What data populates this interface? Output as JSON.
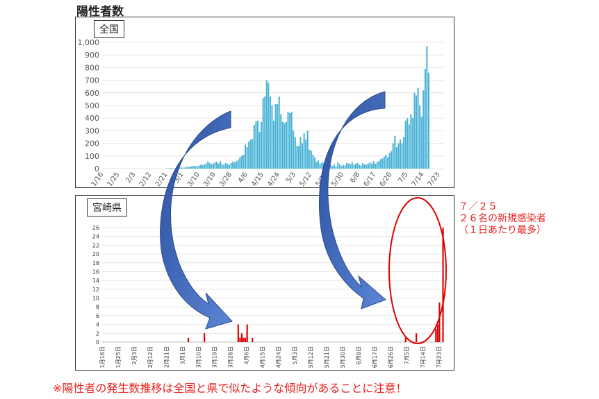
{
  "page_title": "陽性者数",
  "annotation": {
    "line1": "７／２５",
    "line2": "２６名の新規感染者",
    "line3": "（１日あたり最多）"
  },
  "footnote": "※陽性者の発生数推移は全国と県で似たような傾向があることに注意！",
  "colors": {
    "national_bar": "#4bb3d6",
    "pref_bar": "#e00000",
    "annotation": "#e8201e",
    "arrow": "#3a63b8",
    "highlight_ellipse": "#e00000"
  },
  "chart_data": [
    {
      "type": "bar",
      "panel_label": "全国",
      "x_ticks": [
        "1/16",
        "1/25",
        "2/3",
        "2/12",
        "2/21",
        "3/1",
        "3/10",
        "3/19",
        "3/28",
        "4/6",
        "4/15",
        "4/24",
        "5/3",
        "5/12",
        "5/21",
        "5/30",
        "6/8",
        "6/17",
        "6/26",
        "7/5",
        "7/14",
        "7/23"
      ],
      "y_ticks": [
        "0",
        "100",
        "200",
        "300",
        "400",
        "500",
        "600",
        "700",
        "800",
        "900",
        "1,000"
      ],
      "ylim": [
        0,
        1000
      ],
      "grid": true,
      "x_start": "1/16",
      "values": [
        0,
        0,
        0,
        0,
        0,
        0,
        0,
        0,
        0,
        0,
        0,
        0,
        0,
        0,
        0,
        0,
        0,
        0,
        0,
        0,
        0,
        0,
        0,
        0,
        0,
        0,
        0,
        0,
        0,
        0,
        0,
        0,
        0,
        0,
        0,
        0,
        3,
        2,
        5,
        4,
        2,
        5,
        6,
        8,
        10,
        8,
        8,
        12,
        14,
        16,
        18,
        22,
        20,
        15,
        25,
        30,
        28,
        33,
        40,
        55,
        45,
        35,
        42,
        50,
        55,
        40,
        60,
        35,
        30,
        45,
        38,
        30,
        45,
        55,
        50,
        60,
        70,
        90,
        100,
        110,
        190,
        170,
        215,
        230,
        235,
        345,
        375,
        380,
        290,
        370,
        560,
        570,
        700,
        680,
        570,
        500,
        380,
        510,
        510,
        570,
        430,
        370,
        360,
        370,
        450,
        440,
        450,
        300,
        250,
        180,
        180,
        250,
        200,
        280,
        230,
        300,
        150,
        140,
        110,
        90,
        55,
        65,
        40,
        50,
        45,
        40,
        25,
        35,
        30,
        20,
        35,
        15,
        50,
        35,
        20,
        30,
        25,
        45,
        40,
        35,
        50,
        30,
        40,
        45,
        30,
        25,
        45,
        35,
        30,
        40,
        50,
        40,
        60,
        40,
        50,
        60,
        75,
        80,
        95,
        110,
        90,
        125,
        140,
        200,
        260,
        170,
        200,
        230,
        200,
        250,
        380,
        400,
        350,
        430,
        400,
        600,
        580,
        640,
        500,
        410,
        620,
        790,
        970,
        760
      ]
    },
    {
      "type": "bar",
      "panel_label": "宮崎県",
      "x_ticks": [
        "1月16日",
        "1月25日",
        "2月3日",
        "2月12日",
        "2月21日",
        "3月1日",
        "3月10日",
        "3月19日",
        "3月28日",
        "4月6日",
        "4月15日",
        "4月24日",
        "5月3日",
        "5月12日",
        "5月21日",
        "5月30日",
        "6月8日",
        "6月17日",
        "6月26日",
        "7月5日",
        "7月14日",
        "7月23日"
      ],
      "y_ticks": [
        "0",
        "2",
        "4",
        "6",
        "8",
        "10",
        "12",
        "14",
        "16",
        "18",
        "20",
        "22",
        "24",
        "26"
      ],
      "ylim": [
        0,
        28
      ],
      "grid": true,
      "nonzero_days": [
        {
          "date": "3/4",
          "value": 1
        },
        {
          "date": "3/13",
          "value": 2
        },
        {
          "date": "4/1",
          "value": 4
        },
        {
          "date": "4/2",
          "value": 1
        },
        {
          "date": "4/3",
          "value": 2
        },
        {
          "date": "4/4",
          "value": 1
        },
        {
          "date": "4/5",
          "value": 1
        },
        {
          "date": "4/6",
          "value": 4
        },
        {
          "date": "4/9",
          "value": 1
        },
        {
          "date": "7/4",
          "value": 1
        },
        {
          "date": "7/10",
          "value": 2
        },
        {
          "date": "7/21",
          "value": 3
        },
        {
          "date": "7/22",
          "value": 4
        },
        {
          "date": "7/23",
          "value": 9
        },
        {
          "date": "7/25",
          "value": 26
        }
      ]
    }
  ]
}
